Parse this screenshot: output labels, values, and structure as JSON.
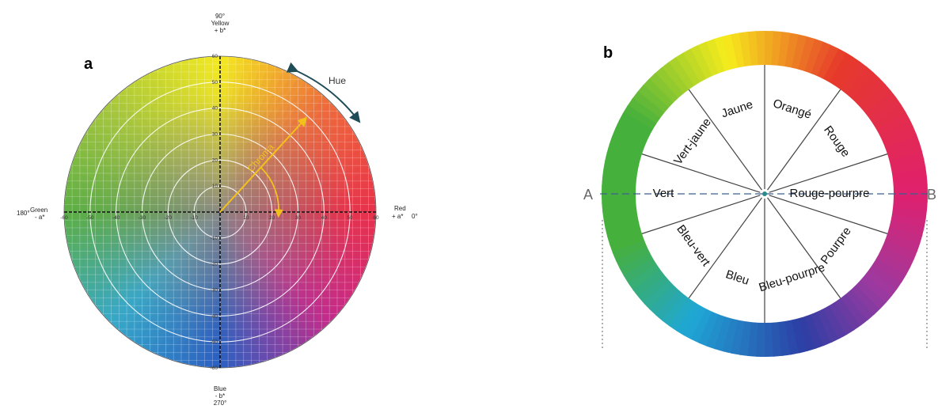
{
  "panel_a": {
    "letter": "a",
    "top_label": [
      "90°",
      "Yellow",
      "+ b*"
    ],
    "bottom_label": [
      "Blue",
      "- b*",
      "270°"
    ],
    "left_label": [
      "180°",
      "Green",
      "- a*"
    ],
    "right_label": [
      "Red",
      "+ a*",
      "0°"
    ],
    "hue_label": "Hue",
    "chroma_label": "Chroma",
    "ticks_positive": [
      "10",
      "20",
      "30",
      "40",
      "50",
      "60"
    ],
    "ticks_negative": [
      "-10",
      "-20",
      "-30",
      "-40",
      "-50",
      "-60"
    ],
    "colors": {
      "yellow": "#f4ea1e",
      "red": "#e8304a",
      "magenta": "#c42a8c",
      "blue": "#2b5fc2",
      "cyan": "#35a9c9",
      "green": "#5cae45",
      "center": "#8a8784",
      "arrow": "#f2c21a",
      "hue_arrow": "#1f4d57"
    }
  },
  "panel_b": {
    "letter": "b",
    "point_a": "A",
    "point_b": "B",
    "segments": [
      "Jaune",
      "Orangé",
      "Rouge",
      "Rouge-pourpre",
      "Pourpre",
      "Bleu-pourpre",
      "Bleu",
      "Bleu-vert",
      "Vert",
      "Vert-jaune"
    ],
    "colors": {
      "ring": [
        "#e63a2a",
        "#f7ec1c",
        "#46b03c",
        "#1fa7d6",
        "#2c3fa5",
        "#9c3aa0",
        "#e0206e"
      ],
      "lines": "#444444"
    }
  }
}
